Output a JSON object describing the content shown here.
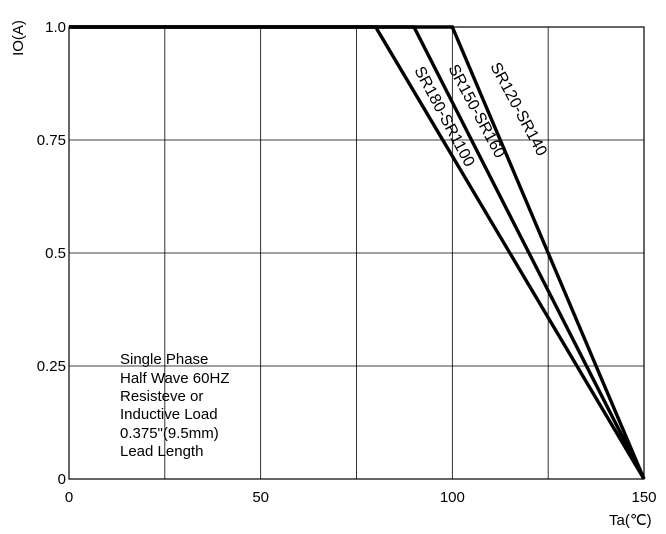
{
  "chart_data": {
    "type": "line",
    "ylabel": "IO(A)",
    "xlabel": "Ta(℃)",
    "xlim": [
      0,
      150
    ],
    "ylim": [
      0,
      1.0
    ],
    "x_ticks": [
      {
        "value": 0,
        "label": "0"
      },
      {
        "value": 50,
        "label": "50"
      },
      {
        "value": 100,
        "label": "100"
      },
      {
        "value": 150,
        "label": "150"
      }
    ],
    "y_ticks": [
      {
        "value": 0,
        "label": "0"
      },
      {
        "value": 0.25,
        "label": "0.25"
      },
      {
        "value": 0.5,
        "label": "0.5"
      },
      {
        "value": 0.75,
        "label": "0.75"
      },
      {
        "value": 1.0,
        "label": "1.0"
      }
    ],
    "grid": true,
    "grid_x_step": 25,
    "grid_y_step": 0.25,
    "series": [
      {
        "name": "SR180-SR1100",
        "x": [
          0,
          80,
          150
        ],
        "y": [
          1.0,
          1.0,
          0
        ]
      },
      {
        "name": "SR150-SR160",
        "x": [
          0,
          90,
          150
        ],
        "y": [
          1.0,
          1.0,
          0
        ]
      },
      {
        "name": "SR120-SR140",
        "x": [
          0,
          100,
          150
        ],
        "y": [
          1.0,
          1.0,
          0
        ]
      }
    ],
    "annotation_lines": [
      "Single Phase",
      "Half Wave 60HZ",
      "Resisteve or",
      "Inductive Load",
      "0.375\"(9.5mm)",
      "Lead Length"
    ]
  }
}
